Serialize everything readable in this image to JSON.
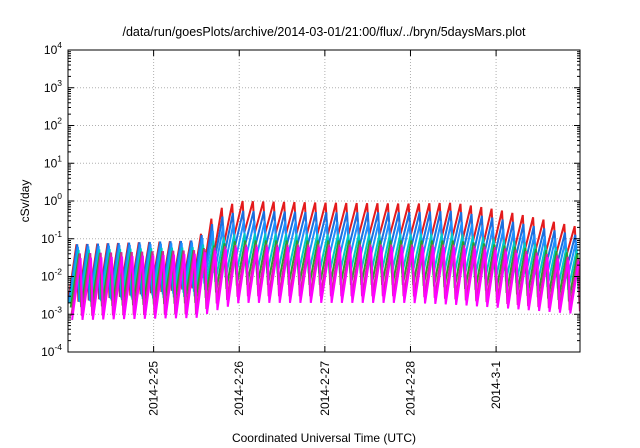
{
  "chart_data": {
    "type": "line",
    "title": "/data/run/goesPlots/archive/2014-03-01/21:00/flux/../bryn/5daysMars.plot",
    "xlabel": "Coordinated Universal Time (UTC)",
    "ylabel": "cSv/day",
    "yscale": "log",
    "ylim": [
      0.0001,
      10000
    ],
    "xlim": [
      -1.0,
      4.98
    ],
    "grid": true,
    "x_ticks": [
      {
        "x": 0,
        "label": "2014-2-25"
      },
      {
        "x": 1,
        "label": "2014-2-26"
      },
      {
        "x": 2,
        "label": "2014-2-27"
      },
      {
        "x": 3,
        "label": "2014-2-28"
      },
      {
        "x": 4,
        "label": "2014-3-1"
      }
    ],
    "y_ticks": [
      {
        "value": 0.0001,
        "base": "10",
        "exp": "-4"
      },
      {
        "value": 0.001,
        "base": "10",
        "exp": "-3"
      },
      {
        "value": 0.01,
        "base": "10",
        "exp": "-2"
      },
      {
        "value": 0.1,
        "base": "10",
        "exp": "-1"
      },
      {
        "value": 1,
        "base": "10",
        "exp": "0"
      },
      {
        "value": 10,
        "base": "10",
        "exp": "1"
      },
      {
        "value": 100,
        "base": "10",
        "exp": "2"
      },
      {
        "value": 1000,
        "base": "10",
        "exp": "3"
      },
      {
        "value": 10000,
        "base": "10",
        "exp": "4"
      }
    ],
    "oscillation": {
      "cycles_per_day": 8.25
    },
    "series": [
      {
        "color": "#e41a1c",
        "peak": [
          [
            -1.0,
            0.07
          ],
          [
            0.5,
            0.09
          ],
          [
            0.75,
            0.6
          ],
          [
            1.0,
            1.0
          ],
          [
            2.0,
            0.9
          ],
          [
            3.0,
            0.85
          ],
          [
            3.5,
            0.9
          ],
          [
            4.0,
            0.6
          ],
          [
            4.98,
            0.2
          ]
        ],
        "trough": [
          [
            -1.0,
            0.002
          ],
          [
            0.5,
            0.005
          ],
          [
            0.75,
            0.05
          ],
          [
            1.0,
            0.15
          ],
          [
            2.0,
            0.12
          ],
          [
            3.0,
            0.12
          ],
          [
            3.5,
            0.1
          ],
          [
            4.0,
            0.06
          ],
          [
            4.98,
            0.03
          ]
        ]
      },
      {
        "color": "#1a6fdf",
        "peak": [
          [
            -1.0,
            0.07
          ],
          [
            0.5,
            0.09
          ],
          [
            0.75,
            0.35
          ],
          [
            1.0,
            0.55
          ],
          [
            2.0,
            0.5
          ],
          [
            3.0,
            0.5
          ],
          [
            3.5,
            0.55
          ],
          [
            4.0,
            0.35
          ],
          [
            4.98,
            0.12
          ]
        ],
        "trough": [
          [
            -1.0,
            0.002
          ],
          [
            0.5,
            0.005
          ],
          [
            0.75,
            0.03
          ],
          [
            1.0,
            0.07
          ],
          [
            2.0,
            0.06
          ],
          [
            3.0,
            0.06
          ],
          [
            3.5,
            0.05
          ],
          [
            4.0,
            0.03
          ],
          [
            4.98,
            0.015
          ]
        ]
      },
      {
        "color": "#1e90ff",
        "peak": [
          [
            -1.0,
            0.06
          ],
          [
            0.5,
            0.08
          ],
          [
            0.75,
            0.2
          ],
          [
            1.0,
            0.3
          ],
          [
            2.0,
            0.28
          ],
          [
            3.0,
            0.28
          ],
          [
            3.5,
            0.3
          ],
          [
            4.0,
            0.2
          ],
          [
            4.98,
            0.08
          ]
        ],
        "trough": [
          [
            -1.0,
            0.002
          ],
          [
            0.5,
            0.004
          ],
          [
            0.75,
            0.015
          ],
          [
            1.0,
            0.03
          ],
          [
            2.0,
            0.03
          ],
          [
            3.0,
            0.03
          ],
          [
            3.5,
            0.025
          ],
          [
            4.0,
            0.015
          ],
          [
            4.98,
            0.008
          ]
        ]
      },
      {
        "color": "#00c8c8",
        "peak": [
          [
            -1.0,
            0.05
          ],
          [
            0.5,
            0.06
          ],
          [
            0.75,
            0.1
          ],
          [
            1.0,
            0.14
          ],
          [
            2.0,
            0.13
          ],
          [
            3.0,
            0.13
          ],
          [
            3.5,
            0.14
          ],
          [
            4.0,
            0.1
          ],
          [
            4.98,
            0.05
          ]
        ],
        "trough": [
          [
            -1.0,
            0.002
          ],
          [
            0.5,
            0.003
          ],
          [
            0.75,
            0.008
          ],
          [
            1.0,
            0.012
          ],
          [
            2.0,
            0.012
          ],
          [
            3.0,
            0.012
          ],
          [
            3.5,
            0.01
          ],
          [
            4.0,
            0.008
          ],
          [
            4.98,
            0.004
          ]
        ]
      },
      {
        "color": "#2ca02c",
        "peak": [
          [
            -1.0,
            0.04
          ],
          [
            0.5,
            0.05
          ],
          [
            0.75,
            0.07
          ],
          [
            1.0,
            0.09
          ],
          [
            2.0,
            0.09
          ],
          [
            3.0,
            0.09
          ],
          [
            3.5,
            0.09
          ],
          [
            4.0,
            0.07
          ],
          [
            4.98,
            0.04
          ]
        ],
        "trough": [
          [
            -1.0,
            0.0015
          ],
          [
            0.5,
            0.002
          ],
          [
            0.75,
            0.004
          ],
          [
            1.0,
            0.006
          ],
          [
            2.0,
            0.006
          ],
          [
            3.0,
            0.006
          ],
          [
            3.5,
            0.005
          ],
          [
            4.0,
            0.004
          ],
          [
            4.98,
            0.002
          ]
        ]
      },
      {
        "color": "#d62798",
        "peak": [
          [
            -1.0,
            0.04
          ],
          [
            0.5,
            0.05
          ],
          [
            0.75,
            0.06
          ],
          [
            1.0,
            0.07
          ],
          [
            2.0,
            0.07
          ],
          [
            3.0,
            0.07
          ],
          [
            3.5,
            0.07
          ],
          [
            4.0,
            0.06
          ],
          [
            4.98,
            0.03
          ]
        ],
        "trough": [
          [
            -1.0,
            0.0009
          ],
          [
            0.5,
            0.001
          ],
          [
            0.75,
            0.002
          ],
          [
            1.0,
            0.003
          ],
          [
            2.0,
            0.003
          ],
          [
            3.0,
            0.003
          ],
          [
            3.5,
            0.0025
          ],
          [
            4.0,
            0.002
          ],
          [
            4.98,
            0.0012
          ]
        ]
      },
      {
        "color": "#ff00ff",
        "peak": [
          [
            -1.0,
            0.03
          ],
          [
            0.5,
            0.04
          ],
          [
            0.75,
            0.05
          ],
          [
            1.0,
            0.06
          ],
          [
            2.0,
            0.06
          ],
          [
            3.0,
            0.06
          ],
          [
            3.5,
            0.06
          ],
          [
            4.0,
            0.05
          ],
          [
            4.98,
            0.025
          ]
        ],
        "trough": [
          [
            -1.0,
            0.0007
          ],
          [
            0.5,
            0.0008
          ],
          [
            0.75,
            0.0013
          ],
          [
            1.0,
            0.002
          ],
          [
            2.0,
            0.002
          ],
          [
            3.0,
            0.002
          ],
          [
            3.5,
            0.0018
          ],
          [
            4.0,
            0.0015
          ],
          [
            4.98,
            0.001
          ]
        ]
      }
    ]
  }
}
